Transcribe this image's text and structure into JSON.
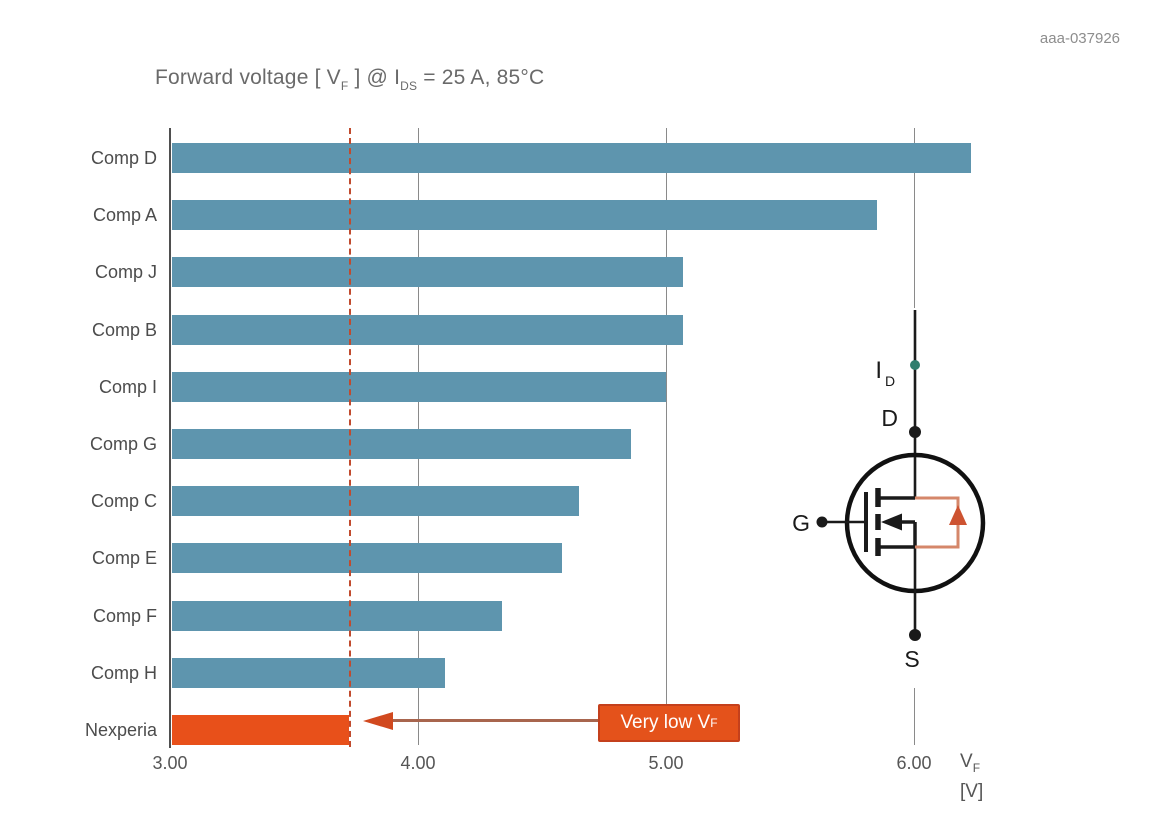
{
  "doc_id": "aaa-037926",
  "title": {
    "full": "Forward voltage [VF] @ IDS = 25 A, 85°C",
    "prefix": "Forward voltage [ V",
    "sub1": "F",
    "mid": " ] @ I",
    "sub2": "DS",
    "suffix": " = 25 A, 85°C"
  },
  "chart_data": {
    "type": "bar",
    "orientation": "horizontal",
    "title": "Forward voltage [VF] @ IDS = 25 A, 85°C",
    "categories": [
      "Comp D",
      "Comp A",
      "Comp J",
      "Comp B",
      "Comp I",
      "Comp G",
      "Comp C",
      "Comp E",
      "Comp F",
      "Comp H",
      "Nexperia"
    ],
    "values": [
      6.23,
      5.85,
      5.07,
      5.07,
      5.0,
      4.86,
      4.65,
      4.58,
      4.34,
      4.11,
      3.72
    ],
    "highlight_category": "Nexperia",
    "xlabel": "VF [V]",
    "x_axis": {
      "range": [
        3.0,
        6.55
      ],
      "ticks": [
        {
          "value": 3.0,
          "label": "3.00"
        },
        {
          "value": 4.0,
          "label": "4.00"
        },
        {
          "value": 5.0,
          "label": "5.00"
        },
        {
          "value": 6.0,
          "label": "6.00"
        }
      ],
      "unit_label": {
        "main": "V",
        "sub": "F",
        "bracket": "[V]"
      }
    },
    "reference_line": {
      "value": 3.72,
      "style": "dashed",
      "color": "#c14b2e"
    },
    "annotation": {
      "text": "Very low V",
      "text_sub": "F",
      "points_to_category": "Nexperia",
      "box_color": "#e4521b",
      "text_color": "#ffffff"
    },
    "grid": "vertical-only",
    "legend": "none",
    "colors": {
      "bar": "#5e95ae",
      "highlight": "#e8501a",
      "gridline": "#8a8a8a",
      "axis": "#4f4f4f"
    }
  },
  "circuit": {
    "description": "power MOSFET symbol with body diode",
    "labels": {
      "current_main": "I",
      "current_sub": "D",
      "drain": "D",
      "gate": "G",
      "source": "S"
    },
    "colors": {
      "wire": "#1a1a1a",
      "diode_loop": "#d5876a",
      "diode_fill": "#cd5331",
      "current_dot": "#2f7e6e"
    }
  }
}
